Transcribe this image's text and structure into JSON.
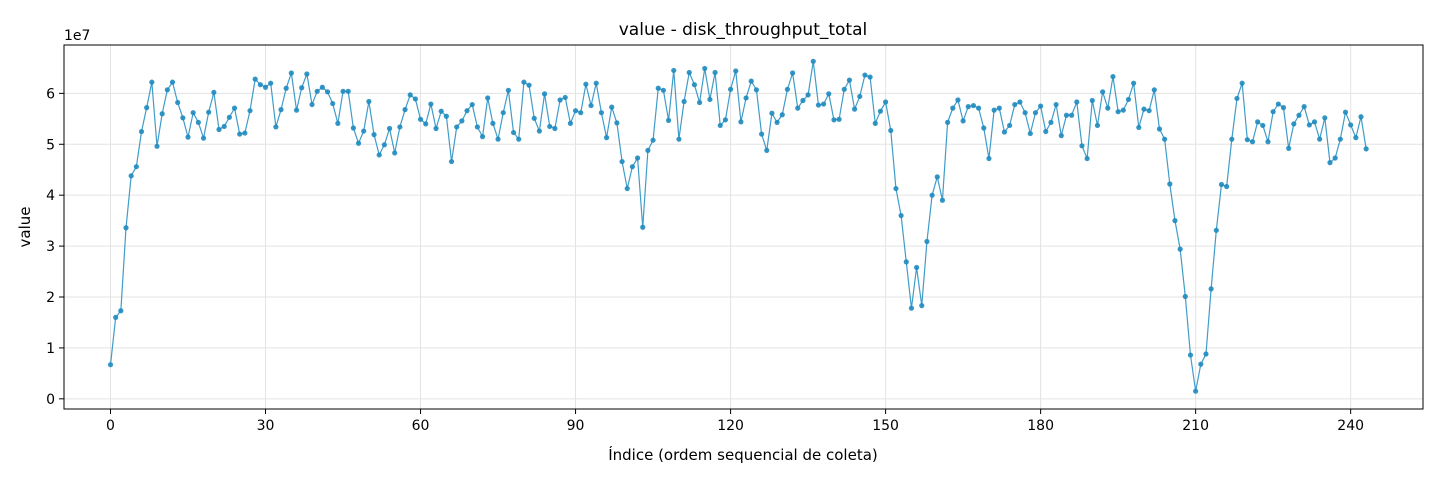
{
  "chart_data": {
    "type": "line",
    "title": "value - disk_throughput_total",
    "xlabel": "Índice (ordem sequencial de coleta)",
    "ylabel": "value",
    "y_offset_text": "1e7",
    "y_scale_factor": 10000000,
    "xlim": [
      -9,
      254
    ],
    "ylim": [
      -0.2,
      6.95
    ],
    "x_ticks": [
      0,
      30,
      60,
      90,
      120,
      150,
      180,
      210,
      240
    ],
    "y_ticks": [
      0,
      1,
      2,
      3,
      4,
      5,
      6
    ],
    "grid": true,
    "line_color": "#1f8bbf",
    "series": [
      {
        "values": [
          0.67,
          1.6,
          1.73,
          3.36,
          4.38,
          4.56,
          5.25,
          5.72,
          6.22,
          4.96,
          5.6,
          6.07,
          6.22,
          5.82,
          5.52,
          5.14,
          5.62,
          5.43,
          5.12,
          5.63,
          6.02,
          5.29,
          5.35,
          5.53,
          5.71,
          5.2,
          5.22,
          5.66,
          6.28,
          6.17,
          6.12,
          6.2,
          5.34,
          5.68,
          6.1,
          6.4,
          5.67,
          6.11,
          6.38,
          5.78,
          6.04,
          6.12,
          6.03,
          5.8,
          5.41,
          6.04,
          6.04,
          5.32,
          5.02,
          5.26,
          5.84,
          5.19,
          4.79,
          4.99,
          5.31,
          4.83,
          5.34,
          5.68,
          5.97,
          5.89,
          5.49,
          5.4,
          5.79,
          5.31,
          5.65,
          5.55,
          4.66,
          5.34,
          5.46,
          5.66,
          5.78,
          5.34,
          5.15,
          5.91,
          5.41,
          5.1,
          5.62,
          6.06,
          5.23,
          5.1,
          6.22,
          6.16,
          5.51,
          5.26,
          5.99,
          5.35,
          5.31,
          5.87,
          5.92,
          5.41,
          5.66,
          5.62,
          6.18,
          5.76,
          6.2,
          5.62,
          5.13,
          5.73,
          5.42,
          4.66,
          4.13,
          4.56,
          4.73,
          3.37,
          4.88,
          5.08,
          6.1,
          6.06,
          5.47,
          6.45,
          5.1,
          5.84,
          6.41,
          6.17,
          5.82,
          6.49,
          5.88,
          6.41,
          5.37,
          5.48,
          6.08,
          6.44,
          5.44,
          5.91,
          6.24,
          6.07,
          5.2,
          4.88,
          5.61,
          5.43,
          5.58,
          6.08,
          6.4,
          5.71,
          5.86,
          5.97,
          6.63,
          5.77,
          5.79,
          5.99,
          5.48,
          5.49,
          6.08,
          6.26,
          5.69,
          5.94,
          6.36,
          6.32,
          5.41,
          5.65,
          5.83,
          5.27,
          4.13,
          3.6,
          2.69,
          1.78,
          2.58,
          1.83,
          3.09,
          4.0,
          4.36,
          3.9,
          5.43,
          5.71,
          5.87,
          5.46,
          5.74,
          5.76,
          5.71,
          5.32,
          4.72,
          5.67,
          5.71,
          5.24,
          5.37,
          5.78,
          5.83,
          5.62,
          5.21,
          5.62,
          5.75,
          5.25,
          5.43,
          5.78,
          5.17,
          5.57,
          5.57,
          5.83,
          4.97,
          4.72,
          5.86,
          5.37,
          6.03,
          5.71,
          6.33,
          5.64,
          5.67,
          5.88,
          6.2,
          5.33,
          5.69,
          5.66,
          6.07,
          5.3,
          5.1,
          4.22,
          3.5,
          2.94,
          2.01,
          0.86,
          0.15,
          0.68,
          0.88,
          2.16,
          3.31,
          4.21,
          4.17,
          5.1,
          5.9,
          6.2,
          5.09,
          5.05,
          5.44,
          5.37,
          5.05,
          5.64,
          5.79,
          5.72,
          4.92,
          5.4,
          5.57,
          5.74,
          5.38,
          5.44,
          5.1,
          5.52,
          4.64,
          4.73,
          5.1,
          5.63,
          5.38,
          5.13,
          5.54,
          4.91
        ]
      }
    ]
  }
}
